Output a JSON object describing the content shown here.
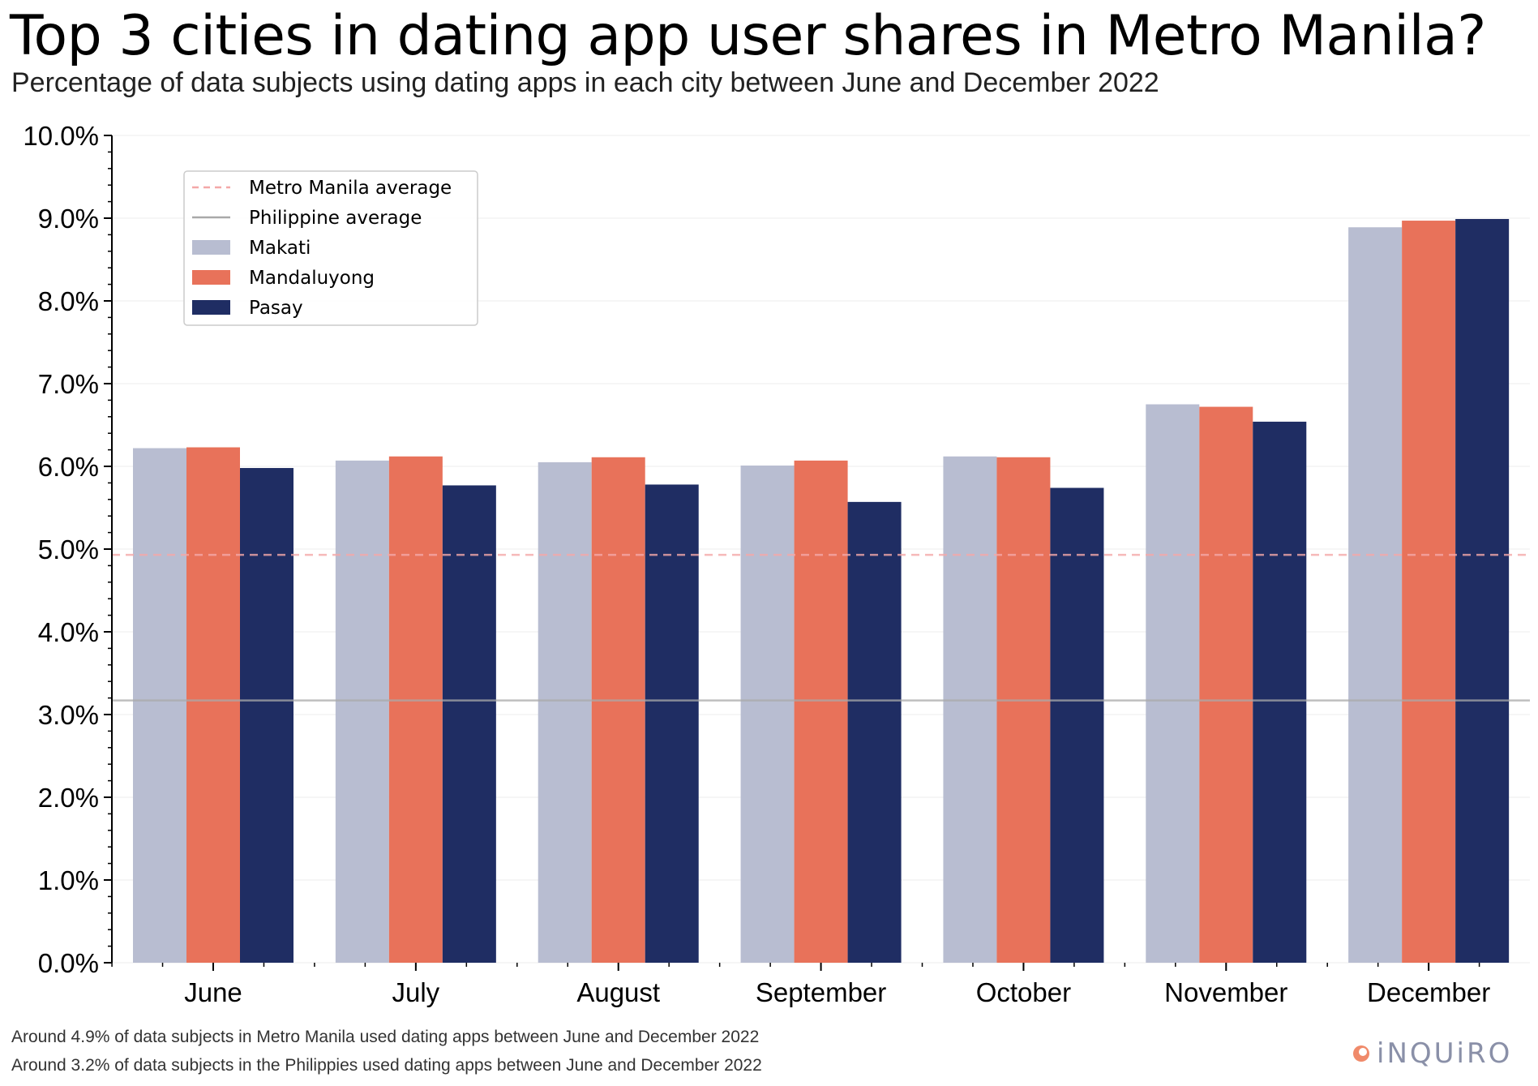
{
  "title": "Top 3 cities in dating app user shares in Metro Manila?",
  "subtitle": "Percentage of data subjects using dating apps in each city between June and December 2022",
  "notes": [
    "Around 4.9% of data subjects in Metro Manila used dating apps between June and December 2022",
    "Around 3.2% of data subjects in the Philippies used dating apps between June and December 2022"
  ],
  "brand": "iNQUiRO",
  "colors": {
    "makati": "#b8bdd1",
    "mandaluyong": "#e8725a",
    "pasay": "#1f2d63",
    "metro_line": "#f4a8a8",
    "ph_line": "#a9a9a9",
    "brand": "#8a90a8",
    "brand_icon": "#f08a6a"
  },
  "chart_data": {
    "type": "bar",
    "categories": [
      "June",
      "July",
      "August",
      "September",
      "October",
      "November",
      "December"
    ],
    "series": [
      {
        "name": "Makati",
        "color": "#b8bdd1",
        "values": [
          6.22,
          6.07,
          6.05,
          6.01,
          6.12,
          6.75,
          8.89
        ]
      },
      {
        "name": "Mandaluyong",
        "color": "#e8725a",
        "values": [
          6.23,
          6.12,
          6.11,
          6.07,
          6.11,
          6.72,
          8.97
        ]
      },
      {
        "name": "Pasay",
        "color": "#1f2d63",
        "values": [
          5.98,
          5.77,
          5.78,
          5.57,
          5.74,
          6.54,
          8.99
        ]
      }
    ],
    "reference_lines": [
      {
        "name": "Metro Manila average",
        "value": 4.93,
        "style": "dashed",
        "color": "#f4a8a8"
      },
      {
        "name": "Philippine average",
        "value": 3.17,
        "style": "solid",
        "color": "#a9a9a9"
      }
    ],
    "ylim": [
      0,
      10
    ],
    "yticks": [
      "0.0%",
      "1.0%",
      "2.0%",
      "3.0%",
      "4.0%",
      "5.0%",
      "6.0%",
      "7.0%",
      "8.0%",
      "9.0%",
      "10.0%"
    ],
    "xlabel": "",
    "ylabel": "",
    "grid": "y",
    "legend_position": "top-left",
    "legend": [
      "Metro Manila average",
      "Philippine average",
      "Makati",
      "Mandaluyong",
      "Pasay"
    ]
  }
}
